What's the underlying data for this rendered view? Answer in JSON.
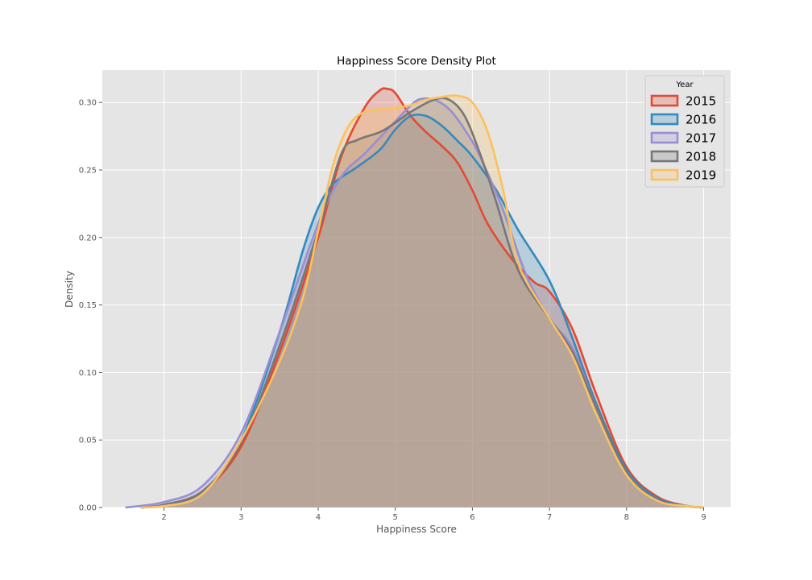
{
  "chart_data": {
    "type": "area",
    "title": "Happiness Score Density Plot",
    "xlabel": "Happiness Score",
    "ylabel": "Density",
    "xlim": [
      1.2,
      9.35
    ],
    "ylim": [
      0,
      0.324
    ],
    "xticks": [
      2,
      3,
      4,
      5,
      6,
      7,
      8,
      9
    ],
    "yticks": [
      0.0,
      0.05,
      0.1,
      0.15,
      0.2,
      0.25,
      0.3
    ],
    "ytick_labels": [
      "0.00",
      "0.05",
      "0.10",
      "0.15",
      "0.20",
      "0.25",
      "0.30"
    ],
    "grid": true,
    "legend": {
      "title": "Year",
      "position": "top-right"
    },
    "series": [
      {
        "name": "2015",
        "color": "#E24A33",
        "x": [
          1.7,
          2.0,
          2.5,
          3.0,
          3.5,
          4.0,
          4.3,
          4.6,
          4.8,
          4.9,
          5.0,
          5.2,
          5.4,
          5.6,
          5.8,
          6.0,
          6.2,
          6.5,
          6.8,
          7.0,
          7.3,
          7.6,
          8.0,
          8.4,
          8.8,
          9.0
        ],
        "values": [
          0.0,
          0.002,
          0.012,
          0.045,
          0.115,
          0.2,
          0.26,
          0.296,
          0.309,
          0.31,
          0.307,
          0.29,
          0.278,
          0.268,
          0.256,
          0.235,
          0.21,
          0.185,
          0.167,
          0.16,
          0.132,
          0.085,
          0.03,
          0.008,
          0.001,
          0.0
        ]
      },
      {
        "name": "2016",
        "color": "#348ABD",
        "x": [
          1.7,
          2.0,
          2.5,
          3.0,
          3.5,
          3.8,
          4.0,
          4.2,
          4.5,
          4.8,
          5.0,
          5.2,
          5.4,
          5.6,
          5.8,
          6.0,
          6.3,
          6.6,
          7.0,
          7.3,
          7.6,
          8.0,
          8.4,
          8.8,
          9.0
        ],
        "values": [
          0.0,
          0.002,
          0.012,
          0.05,
          0.13,
          0.19,
          0.222,
          0.24,
          0.252,
          0.265,
          0.28,
          0.29,
          0.29,
          0.283,
          0.272,
          0.26,
          0.236,
          0.205,
          0.168,
          0.125,
          0.078,
          0.028,
          0.007,
          0.001,
          0.0
        ]
      },
      {
        "name": "2017",
        "color": "#988ED5",
        "x": [
          1.5,
          2.0,
          2.5,
          3.0,
          3.5,
          4.0,
          4.3,
          4.6,
          4.9,
          5.1,
          5.3,
          5.5,
          5.7,
          5.9,
          6.1,
          6.4,
          6.7,
          7.0,
          7.3,
          7.6,
          8.0,
          8.4,
          8.8,
          9.0
        ],
        "values": [
          0.0,
          0.004,
          0.016,
          0.055,
          0.13,
          0.21,
          0.245,
          0.262,
          0.28,
          0.292,
          0.302,
          0.302,
          0.295,
          0.28,
          0.26,
          0.22,
          0.172,
          0.14,
          0.118,
          0.075,
          0.026,
          0.006,
          0.001,
          0.0
        ]
      },
      {
        "name": "2018",
        "color": "#777777",
        "x": [
          1.7,
          2.0,
          2.5,
          3.0,
          3.5,
          4.0,
          4.3,
          4.5,
          4.8,
          5.0,
          5.2,
          5.5,
          5.7,
          5.9,
          6.1,
          6.3,
          6.6,
          7.0,
          7.3,
          7.6,
          8.0,
          8.4,
          8.8,
          9.0
        ],
        "values": [
          0.0,
          0.002,
          0.012,
          0.048,
          0.12,
          0.205,
          0.262,
          0.272,
          0.278,
          0.285,
          0.293,
          0.302,
          0.302,
          0.29,
          0.262,
          0.228,
          0.175,
          0.14,
          0.115,
          0.075,
          0.026,
          0.006,
          0.001,
          0.0
        ]
      },
      {
        "name": "2019",
        "color": "#FBC15E",
        "x": [
          1.7,
          2.0,
          2.5,
          3.0,
          3.5,
          3.8,
          4.0,
          4.2,
          4.4,
          4.6,
          4.8,
          5.0,
          5.2,
          5.4,
          5.6,
          5.8,
          6.0,
          6.2,
          6.4,
          6.6,
          7.0,
          7.3,
          7.6,
          8.0,
          8.4,
          8.8,
          9.0
        ],
        "values": [
          0.0,
          0.001,
          0.01,
          0.05,
          0.108,
          0.155,
          0.205,
          0.255,
          0.283,
          0.293,
          0.295,
          0.296,
          0.298,
          0.302,
          0.304,
          0.305,
          0.3,
          0.278,
          0.235,
          0.18,
          0.14,
          0.112,
          0.07,
          0.024,
          0.005,
          0.001,
          0.0
        ]
      }
    ]
  }
}
